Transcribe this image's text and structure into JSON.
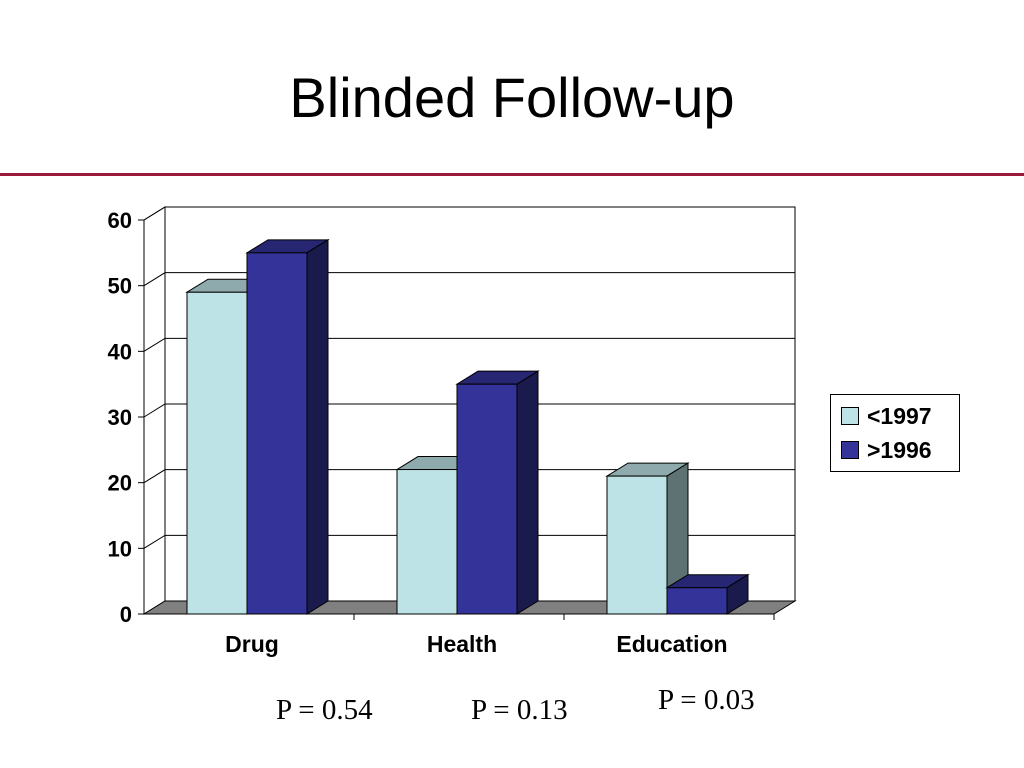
{
  "slide": {
    "title": "Blinded Follow-up",
    "accent_color": "#9b1c3a"
  },
  "chart_data": {
    "type": "bar",
    "style": "3d-clustered",
    "title": "",
    "xlabel": "",
    "ylabel": "",
    "categories": [
      "Drug",
      "Health",
      "Education"
    ],
    "series": [
      {
        "name": "<1997",
        "values": [
          49,
          22,
          21
        ],
        "color": "#bde3e6"
      },
      {
        "name": ">1996",
        "values": [
          55,
          35,
          4
        ],
        "color": "#333399"
      }
    ],
    "ylim": [
      0,
      60
    ],
    "yticks": [
      "0",
      "10",
      "20",
      "30",
      "40",
      "50",
      "60"
    ],
    "grid": true,
    "legend": "right"
  },
  "annotations": {
    "p_values": [
      "P = 0.54",
      "P = 0.13",
      "P = 0.03"
    ]
  }
}
